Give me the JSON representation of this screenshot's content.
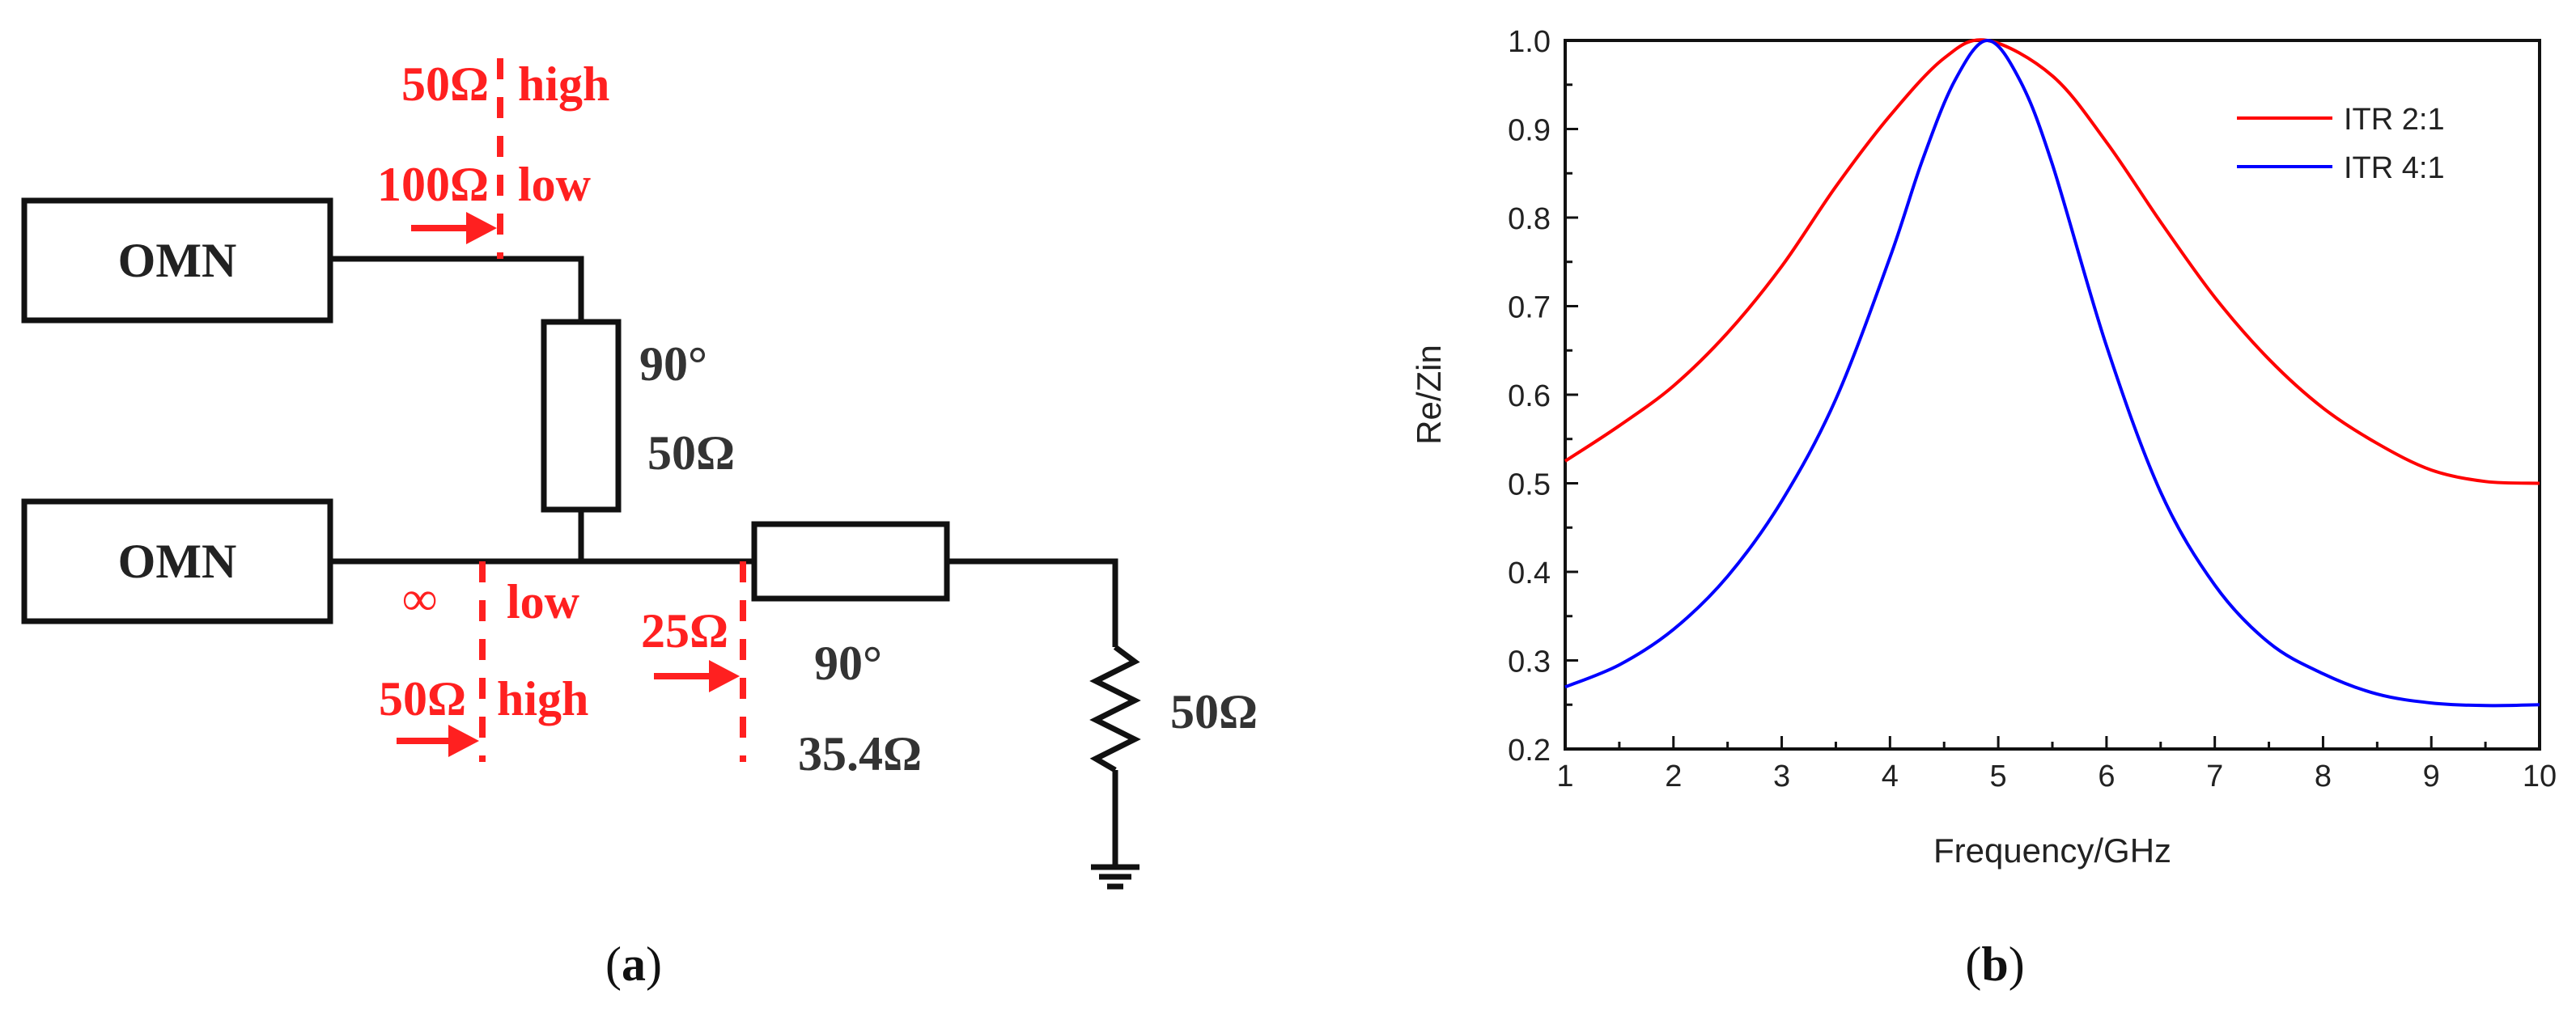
{
  "circuit": {
    "omn_top": "OMN",
    "omn_bottom": "OMN",
    "line1_angle": "90°",
    "line1_z": "50Ω",
    "line2_angle": "90°",
    "line2_z": "35.4Ω",
    "load": "50Ω",
    "top_ref_z_high": "50Ω",
    "top_ref_high": "high",
    "top_ref_z_low": "100Ω",
    "top_ref_low": "low",
    "bot_ref_z_low": "∞",
    "bot_ref_low": "low",
    "bot_ref_z_high": "50Ω",
    "bot_ref_high": "high",
    "junction_z": "25Ω",
    "colors": {
      "wire": "#111111",
      "annotation": "#ff2020"
    }
  },
  "labels": {
    "a": "(a)",
    "b": "(b)"
  },
  "chart_data": {
    "type": "line",
    "xlabel": "Frequency/GHz",
    "ylabel": "Re/Zin",
    "xlim": [
      1,
      10
    ],
    "ylim": [
      0.2,
      1.0
    ],
    "xticks": [
      1,
      2,
      3,
      4,
      5,
      6,
      7,
      8,
      9,
      10
    ],
    "yticks": [
      0.2,
      0.3,
      0.4,
      0.5,
      0.6,
      0.7,
      0.8,
      0.9,
      1.0
    ],
    "legend": "top-right",
    "grid": false,
    "series": [
      {
        "name": "ITR 2:1",
        "color": "#ff0000",
        "x": [
          1,
          1.5,
          2,
          2.5,
          3,
          3.5,
          4,
          4.5,
          4.9,
          5.5,
          6,
          6.5,
          7,
          7.5,
          8,
          8.5,
          9,
          9.5,
          10
        ],
        "y": [
          0.525,
          0.565,
          0.61,
          0.67,
          0.745,
          0.835,
          0.915,
          0.98,
          1.0,
          0.96,
          0.885,
          0.795,
          0.71,
          0.64,
          0.585,
          0.545,
          0.515,
          0.502,
          0.5
        ]
      },
      {
        "name": "ITR 4:1",
        "color": "#0000ff",
        "x": [
          1,
          1.5,
          2,
          2.5,
          3,
          3.5,
          4,
          4.3,
          4.6,
          4.9,
          5.2,
          5.5,
          6,
          6.5,
          7,
          7.5,
          8,
          8.5,
          9,
          9.5,
          10
        ],
        "y": [
          0.27,
          0.295,
          0.335,
          0.395,
          0.48,
          0.595,
          0.755,
          0.865,
          0.955,
          1.0,
          0.955,
          0.86,
          0.655,
          0.49,
          0.385,
          0.32,
          0.285,
          0.262,
          0.252,
          0.249,
          0.25
        ]
      }
    ]
  }
}
